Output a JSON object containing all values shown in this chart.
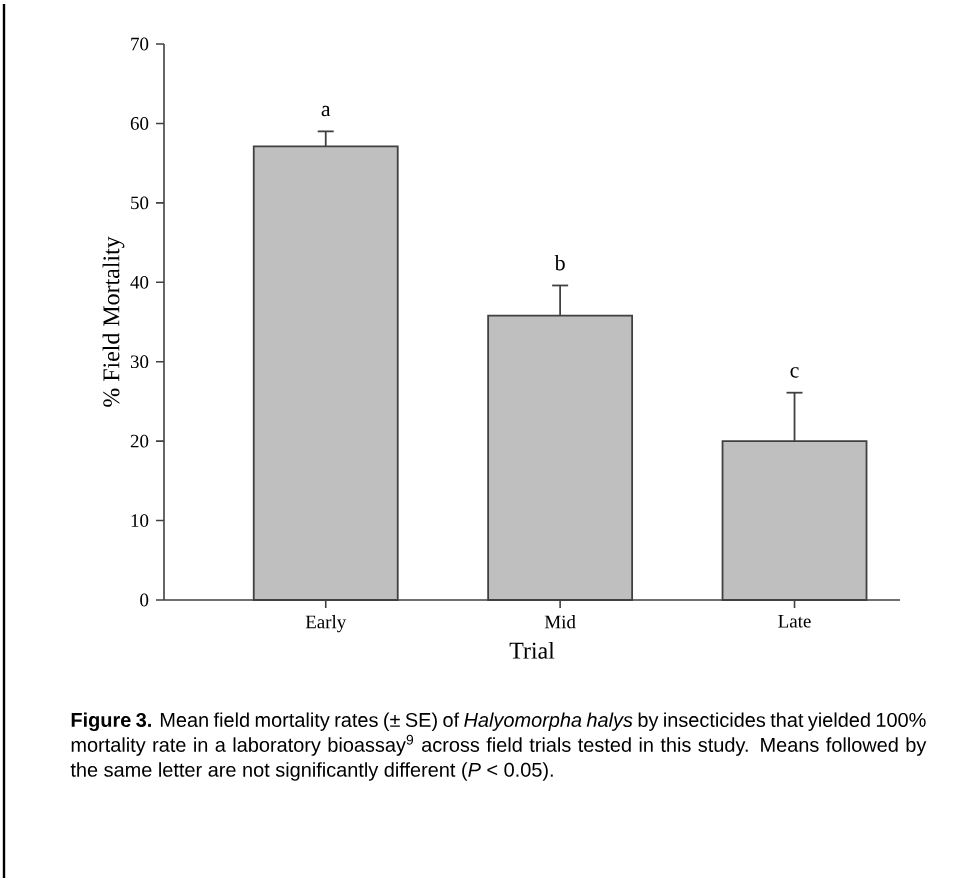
{
  "chart_data": {
    "type": "bar",
    "xlabel": "Trial",
    "ylabel": "% Field Mortality",
    "categories": [
      "Early",
      "Mid",
      "Late"
    ],
    "values": [
      57.1,
      35.8,
      20.0
    ],
    "errors": [
      1.9,
      3.8,
      6.1
    ],
    "color": "#bfbfbf",
    "ylim": [
      0,
      70
    ],
    "yticks": [
      0,
      10,
      20,
      30,
      40,
      50,
      60,
      70
    ],
    "annotations": [
      "a",
      "b",
      "c",
      "**Figure 3.** Mean field mortality rates (± SE) of *Halyomorpha halys* by insecticides that yielded 100% mortality rate in a laboratory bioassay$^{9}$ across field trials tested in this study. Means followed by the same letter are not significantly different (*P* < 0.05)."
    ]
  }
}
